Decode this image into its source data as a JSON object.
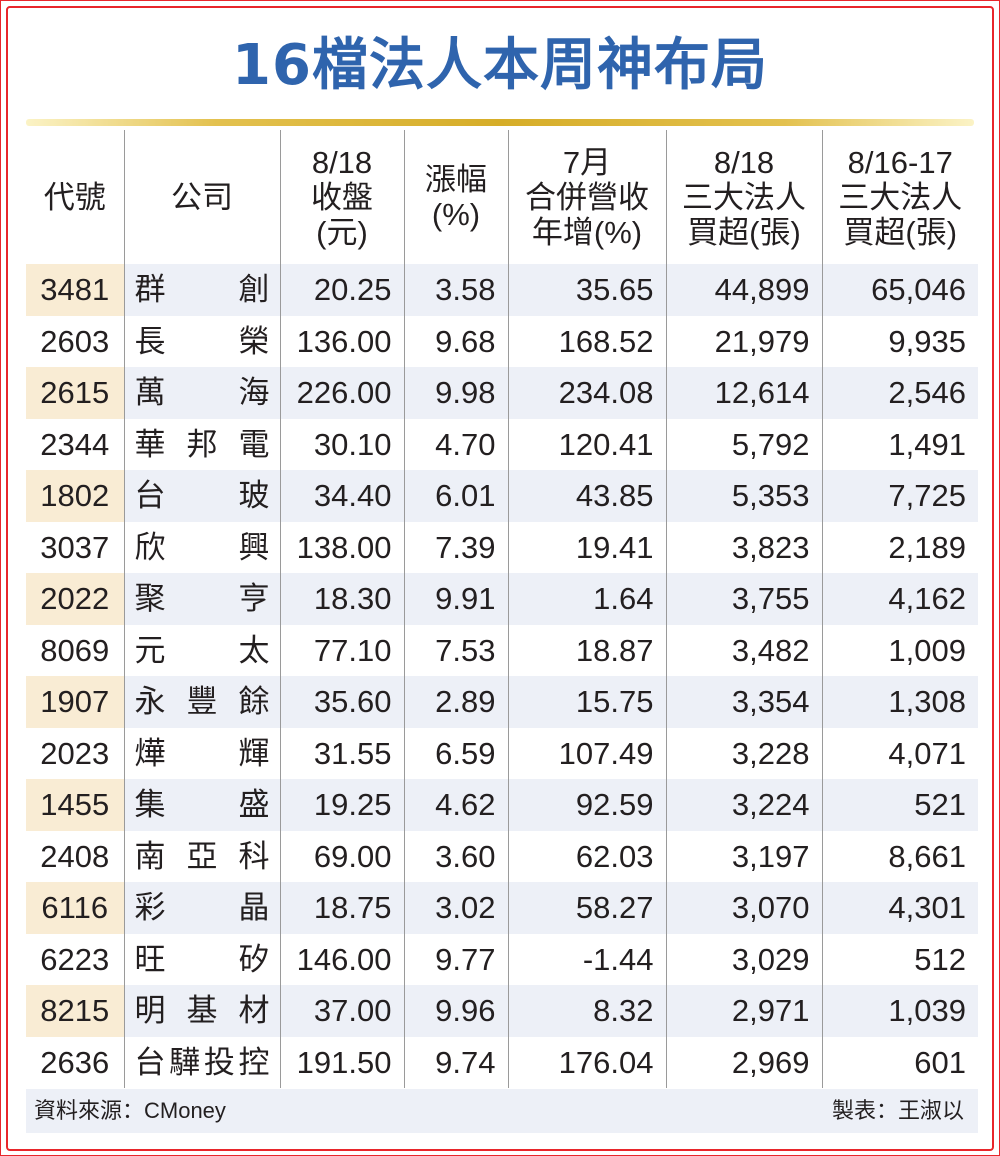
{
  "title": "16檔法人本周神布局",
  "headers": [
    [
      "代號"
    ],
    [
      "公司"
    ],
    [
      "8/18",
      "收盤",
      "(元)"
    ],
    [
      "漲幅",
      "(%)"
    ],
    [
      "7月",
      "合併營收",
      "年增(%)"
    ],
    [
      "8/18",
      "三大法人",
      "買超(張)"
    ],
    [
      "8/16-17",
      "三大法人",
      "買超(張)"
    ]
  ],
  "rows": [
    {
      "code": "3481",
      "name": "群創",
      "close": "20.25",
      "change": "3.58",
      "rev": "35.65",
      "buy1": "44,899",
      "buy2": "65,046"
    },
    {
      "code": "2603",
      "name": "長榮",
      "close": "136.00",
      "change": "9.68",
      "rev": "168.52",
      "buy1": "21,979",
      "buy2": "9,935"
    },
    {
      "code": "2615",
      "name": "萬海",
      "close": "226.00",
      "change": "9.98",
      "rev": "234.08",
      "buy1": "12,614",
      "buy2": "2,546"
    },
    {
      "code": "2344",
      "name": "華邦電",
      "close": "30.10",
      "change": "4.70",
      "rev": "120.41",
      "buy1": "5,792",
      "buy2": "1,491"
    },
    {
      "code": "1802",
      "name": "台玻",
      "close": "34.40",
      "change": "6.01",
      "rev": "43.85",
      "buy1": "5,353",
      "buy2": "7,725"
    },
    {
      "code": "3037",
      "name": "欣興",
      "close": "138.00",
      "change": "7.39",
      "rev": "19.41",
      "buy1": "3,823",
      "buy2": "2,189"
    },
    {
      "code": "2022",
      "name": "聚亨",
      "close": "18.30",
      "change": "9.91",
      "rev": "1.64",
      "buy1": "3,755",
      "buy2": "4,162"
    },
    {
      "code": "8069",
      "name": "元太",
      "close": "77.10",
      "change": "7.53",
      "rev": "18.87",
      "buy1": "3,482",
      "buy2": "1,009"
    },
    {
      "code": "1907",
      "name": "永豐餘",
      "close": "35.60",
      "change": "2.89",
      "rev": "15.75",
      "buy1": "3,354",
      "buy2": "1,308"
    },
    {
      "code": "2023",
      "name": "燁輝",
      "close": "31.55",
      "change": "6.59",
      "rev": "107.49",
      "buy1": "3,228",
      "buy2": "4,071"
    },
    {
      "code": "1455",
      "name": "集盛",
      "close": "19.25",
      "change": "4.62",
      "rev": "92.59",
      "buy1": "3,224",
      "buy2": "521"
    },
    {
      "code": "2408",
      "name": "南亞科",
      "close": "69.00",
      "change": "3.60",
      "rev": "62.03",
      "buy1": "3,197",
      "buy2": "8,661"
    },
    {
      "code": "6116",
      "name": "彩晶",
      "close": "18.75",
      "change": "3.02",
      "rev": "58.27",
      "buy1": "3,070",
      "buy2": "4,301"
    },
    {
      "code": "6223",
      "name": "旺矽",
      "close": "146.00",
      "change": "9.77",
      "rev": "-1.44",
      "buy1": "3,029",
      "buy2": "512"
    },
    {
      "code": "8215",
      "name": "明基材",
      "close": "37.00",
      "change": "9.96",
      "rev": "8.32",
      "buy1": "2,971",
      "buy2": "1,039"
    },
    {
      "code": "2636",
      "name": "台驊投控",
      "close": "191.50",
      "change": "9.74",
      "rev": "176.04",
      "buy1": "2,969",
      "buy2": "601"
    }
  ],
  "footer": {
    "source": "資料來源：CMoney",
    "maker": "製表：王淑以"
  },
  "colors": {
    "title": "#2f64ad",
    "frame": "#e8262b",
    "row_shade": "#edf0f7",
    "code_shade": "#f9ecd4",
    "rule_gold": "#d6ad28"
  }
}
